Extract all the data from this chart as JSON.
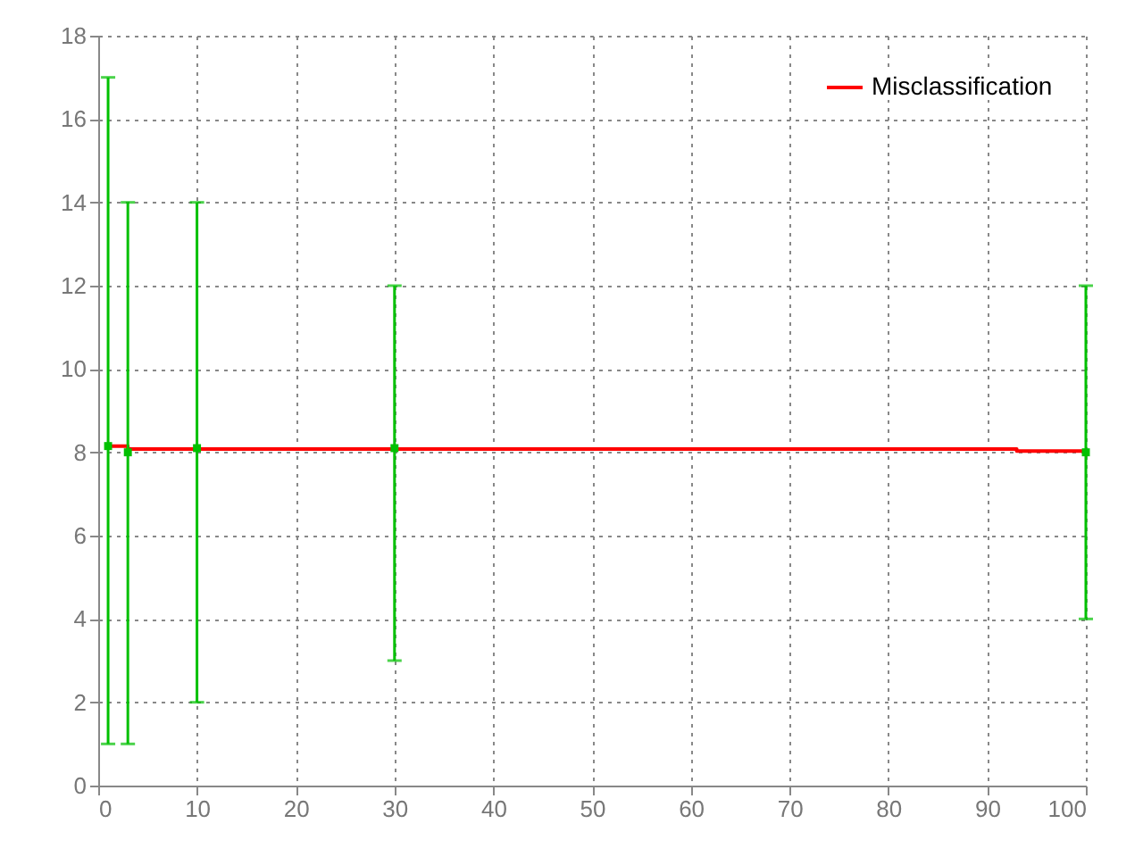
{
  "chart_data": {
    "type": "step",
    "series": [
      {
        "name": "Misclassification",
        "type": "step",
        "color": "#ff0000",
        "x": [
          1,
          3,
          93,
          100
        ],
        "values": [
          8.15,
          8.08,
          8.03,
          8.03
        ]
      },
      {
        "type": "scatter",
        "marker": "square",
        "color": "#00c000",
        "x": [
          1,
          3,
          10,
          30,
          100
        ],
        "values": [
          8.15,
          8.0,
          8.1,
          8.1,
          8.0
        ],
        "errors": [
          [
            1,
            17
          ],
          [
            1,
            14
          ],
          [
            2,
            14
          ],
          [
            3,
            12
          ],
          [
            4,
            12
          ]
        ]
      }
    ],
    "xlim": [
      0,
      100
    ],
    "xticks": [
      0,
      10,
      20,
      30,
      40,
      50,
      60,
      70,
      80,
      90,
      100
    ],
    "ylim": [
      0,
      18
    ],
    "yticks": [
      0,
      2,
      4,
      6,
      8,
      10,
      12,
      14,
      16,
      18
    ],
    "grid": true,
    "legend": "top right"
  }
}
